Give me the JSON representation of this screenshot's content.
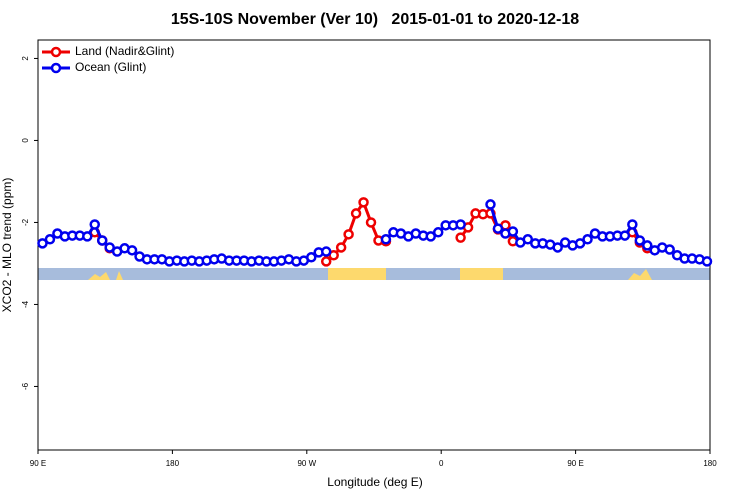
{
  "chart_data": {
    "type": "line",
    "title": "15S-10S November (Ver 10)   2015-01-01 to 2020-12-18",
    "x_label": "Longitude (deg E)",
    "y_label": "XCO2 - MLO trend (ppm)",
    "legend": "top-left",
    "x": [
      93,
      98,
      103,
      108,
      113,
      118,
      123,
      128,
      133,
      138,
      143,
      148,
      153,
      158,
      163,
      168,
      173,
      178,
      183,
      188,
      193,
      198,
      203,
      208,
      213,
      218,
      223,
      228,
      233,
      238,
      243,
      248,
      253,
      258,
      263,
      268,
      273,
      278,
      283,
      288,
      293,
      298,
      303,
      308,
      313,
      318,
      323,
      328,
      333,
      338,
      343,
      348,
      353,
      358,
      363,
      368,
      373,
      378,
      383,
      388,
      393,
      398,
      403,
      408,
      413,
      418,
      423,
      428,
      433,
      438,
      443,
      448,
      453,
      458,
      463,
      468,
      473,
      478,
      483,
      488,
      493,
      498,
      503,
      508,
      513,
      518,
      523,
      528,
      533,
      538
    ],
    "series": [
      {
        "name": "Land (Nadir&Glint)",
        "color": "#ee0000",
        "values": [
          null,
          null,
          null,
          null,
          null,
          null,
          null,
          -2.24,
          -2.44,
          -2.63,
          null,
          null,
          null,
          null,
          null,
          null,
          null,
          null,
          null,
          null,
          null,
          null,
          null,
          null,
          null,
          null,
          null,
          null,
          null,
          null,
          null,
          null,
          null,
          null,
          null,
          null,
          null,
          null,
          -2.95,
          -2.8,
          -2.61,
          -2.29,
          -1.78,
          -1.51,
          -2.0,
          -2.44,
          -2.46,
          null,
          null,
          null,
          null,
          null,
          null,
          null,
          null,
          null,
          -2.37,
          -2.12,
          -1.78,
          -1.8,
          -1.78,
          -2.17,
          -2.07,
          -2.46,
          null,
          null,
          null,
          null,
          null,
          null,
          null,
          null,
          null,
          null,
          null,
          null,
          null,
          null,
          null,
          -2.24,
          -2.49,
          -2.63,
          null,
          null,
          null,
          null,
          null,
          null,
          null,
          null
        ]
      },
      {
        "name": "Ocean (Glint)",
        "color": "#0000ee",
        "values": [
          -2.51,
          -2.41,
          -2.27,
          -2.34,
          -2.32,
          -2.32,
          -2.34,
          -2.05,
          -2.44,
          -2.61,
          -2.71,
          -2.63,
          -2.68,
          -2.83,
          -2.9,
          -2.9,
          -2.9,
          -2.95,
          -2.93,
          -2.95,
          -2.93,
          -2.95,
          -2.93,
          -2.9,
          -2.88,
          -2.93,
          -2.93,
          -2.93,
          -2.95,
          -2.93,
          -2.95,
          -2.95,
          -2.93,
          -2.9,
          -2.95,
          -2.93,
          -2.85,
          -2.73,
          -2.71,
          null,
          null,
          null,
          null,
          null,
          null,
          null,
          -2.41,
          -2.24,
          -2.27,
          -2.34,
          -2.27,
          -2.32,
          -2.34,
          -2.24,
          -2.07,
          -2.07,
          -2.05,
          null,
          null,
          null,
          -1.56,
          -2.15,
          -2.27,
          -2.22,
          -2.49,
          -2.41,
          -2.51,
          -2.51,
          -2.54,
          -2.61,
          -2.49,
          -2.56,
          -2.51,
          -2.41,
          -2.27,
          -2.34,
          -2.34,
          -2.32,
          -2.32,
          -2.05,
          -2.44,
          -2.56,
          -2.68,
          -2.61,
          -2.66,
          -2.8,
          -2.88,
          -2.88,
          -2.9,
          -2.95
        ]
      }
    ],
    "xlim": [
      90,
      540
    ],
    "xticks": [
      {
        "value": 90,
        "label": "90 E"
      },
      180,
      {
        "value": 270,
        "label": "90 W"
      },
      {
        "value": 360,
        "label": "0"
      },
      {
        "value": 450,
        "label": "90 E"
      },
      {
        "value": 540,
        "label": "180"
      }
    ],
    "ylim": [
      -7.55,
      2.45
    ],
    "yticks": [
      2,
      0,
      -2,
      -4,
      -6
    ],
    "grid": false
  }
}
